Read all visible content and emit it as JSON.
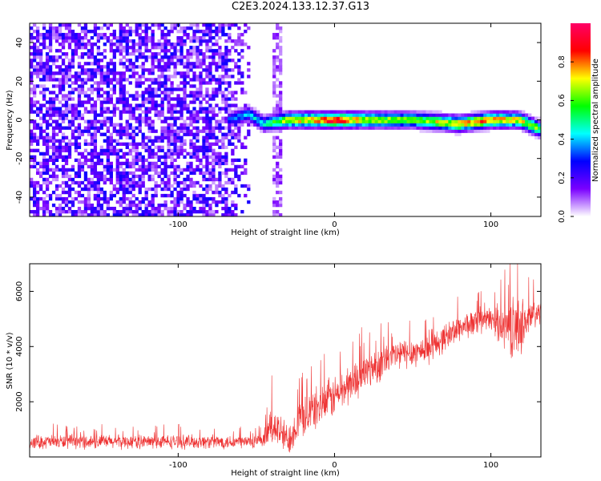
{
  "title": "C2E3.2024.133.12.37.G13",
  "chart_data": [
    {
      "type": "heatmap",
      "xlabel": "Height of straight line (km)",
      "ylabel": "Frequency (Hz)",
      "xlim": [
        -195,
        132
      ],
      "ylim": [
        -50,
        50
      ],
      "x_ticks": [
        -100,
        0,
        100
      ],
      "x_tick_labels": [
        "-100",
        "0",
        "100"
      ],
      "y_ticks": [
        -40,
        -20,
        0,
        20,
        40
      ],
      "y_tick_labels": [
        "-40",
        "-20",
        "0",
        "20",
        "40"
      ],
      "colorbar": {
        "label": "Normalized spectral amplitude",
        "range": [
          0,
          1
        ],
        "ticks": [
          0,
          0.2,
          0.4,
          0.6,
          0.8
        ],
        "tick_labels": [
          "0.0",
          "0.2",
          "0.4",
          "0.6",
          "0.8"
        ],
        "colors": [
          "#ffffff",
          "#7a00ff",
          "#0000ff",
          "#00ffff",
          "#00ff00",
          "#ffff00",
          "#ff0000",
          "#ff0066"
        ]
      },
      "noise_region": {
        "x": [
          -195,
          -55
        ],
        "amplitude": 0.25
      },
      "secondary_noise_band": {
        "x": [
          -40,
          -33
        ],
        "amplitude": 0.15
      },
      "signal_track": [
        {
          "x": -68,
          "freq": 0,
          "amp": 0.3
        },
        {
          "x": -55,
          "freq": 3,
          "amp": 0.4
        },
        {
          "x": -45,
          "freq": -2,
          "amp": 0.45
        },
        {
          "x": -30,
          "freq": 0,
          "amp": 0.7
        },
        {
          "x": -10,
          "freq": 0,
          "amp": 0.8
        },
        {
          "x": 0,
          "freq": 0,
          "amp": 0.9
        },
        {
          "x": 20,
          "freq": 0,
          "amp": 0.7
        },
        {
          "x": 50,
          "freq": 0,
          "amp": 0.6
        },
        {
          "x": 80,
          "freq": -2,
          "amp": 0.75
        },
        {
          "x": 100,
          "freq": 0,
          "amp": 0.8
        },
        {
          "x": 118,
          "freq": 0,
          "amp": 0.7
        },
        {
          "x": 132,
          "freq": -5,
          "amp": 0.6
        }
      ]
    },
    {
      "type": "line",
      "xlabel": "Height of straight line (km)",
      "ylabel": "SNR (10 * v/v)",
      "xlim": [
        -195,
        132
      ],
      "ylim": [
        0,
        7000
      ],
      "x_ticks": [
        -100,
        0,
        100
      ],
      "x_tick_labels": [
        "-100",
        "0",
        "100"
      ],
      "y_ticks": [
        2000,
        4000,
        6000
      ],
      "y_tick_labels": [
        "2000",
        "4000",
        "6000"
      ],
      "color": "#ee3333",
      "trend": [
        {
          "x": -195,
          "mean": 550,
          "spread": 300
        },
        {
          "x": -45,
          "mean": 550,
          "spread": 300
        },
        {
          "x": -40,
          "mean": 1200,
          "spread": 900
        },
        {
          "x": -30,
          "mean": 600,
          "spread": 700
        },
        {
          "x": -22,
          "mean": 1400,
          "spread": 900
        },
        {
          "x": 0,
          "mean": 2200,
          "spread": 900
        },
        {
          "x": 20,
          "mean": 3100,
          "spread": 800
        },
        {
          "x": 40,
          "mean": 3700,
          "spread": 700
        },
        {
          "x": 60,
          "mean": 3900,
          "spread": 600
        },
        {
          "x": 80,
          "mean": 4700,
          "spread": 600
        },
        {
          "x": 100,
          "mean": 5000,
          "spread": 500
        },
        {
          "x": 115,
          "mean": 4600,
          "spread": 1400
        },
        {
          "x": 132,
          "mean": 5300,
          "spread": 500
        }
      ]
    }
  ]
}
